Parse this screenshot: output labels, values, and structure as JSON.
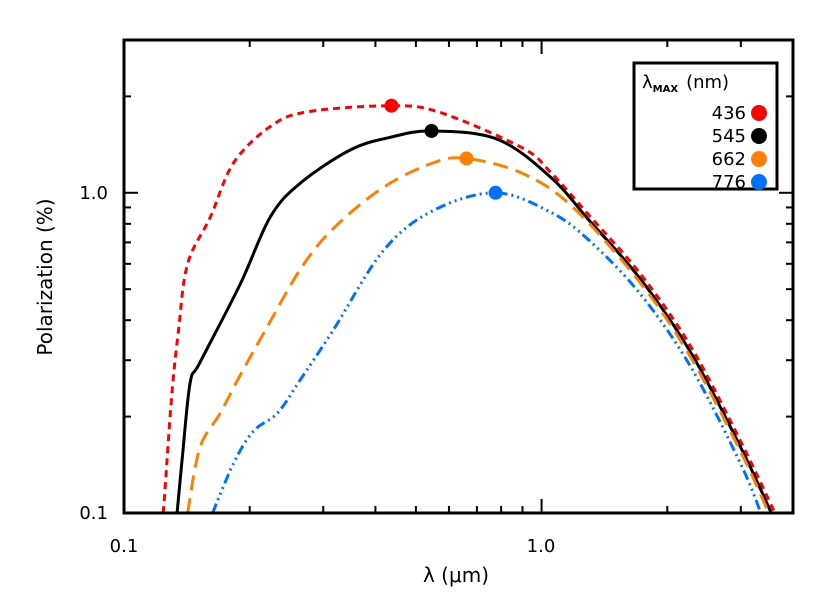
{
  "chart_data": {
    "type": "line",
    "xlabel": "λ (μm)",
    "ylabel": "Polarization (%)",
    "xscale": "log",
    "yscale": "log",
    "xlim": [
      0.1,
      4.0
    ],
    "ylim": [
      0.1,
      3.0
    ],
    "xticks": [
      {
        "value": 0.1,
        "label": "0.1"
      },
      {
        "value": 1.0,
        "label": "1.0"
      }
    ],
    "yticks": [
      {
        "value": 0.1,
        "label": "0.1"
      },
      {
        "value": 1.0,
        "label": "1.0"
      }
    ],
    "grid": false,
    "legend": {
      "placement": "top-right",
      "title_main": "λ",
      "title_sub": "MAX",
      "title_unit": "(nm)"
    },
    "series": [
      {
        "name": "436",
        "color": "#ff0000",
        "style": "short-dash",
        "peak": [
          0.437,
          1.87
        ],
        "points": [
          [
            0.124,
            0.1
          ],
          [
            0.125,
            0.112
          ],
          [
            0.13,
            0.23
          ],
          [
            0.135,
            0.37
          ],
          [
            0.142,
            0.6
          ],
          [
            0.161,
            0.84
          ],
          [
            0.183,
            1.24
          ],
          [
            0.224,
            1.61
          ],
          [
            0.275,
            1.79
          ],
          [
            0.437,
            1.87
          ],
          [
            0.573,
            1.78
          ],
          [
            0.9,
            1.38
          ],
          [
            1.05,
            1.16
          ],
          [
            1.3,
            0.85
          ],
          [
            1.73,
            0.555
          ],
          [
            2.28,
            0.33
          ],
          [
            3.0,
            0.167
          ],
          [
            3.62,
            0.1
          ]
        ]
      },
      {
        "name": "545",
        "color": "#000000",
        "style": "solid",
        "peak": [
          0.545,
          1.56
        ],
        "points": [
          [
            0.134,
            0.1
          ],
          [
            0.138,
            0.15
          ],
          [
            0.144,
            0.255
          ],
          [
            0.152,
            0.295
          ],
          [
            0.19,
            0.52
          ],
          [
            0.224,
            0.84
          ],
          [
            0.264,
            1.07
          ],
          [
            0.348,
            1.36
          ],
          [
            0.434,
            1.49
          ],
          [
            0.545,
            1.56
          ],
          [
            0.783,
            1.47
          ],
          [
            1.05,
            1.12
          ],
          [
            1.3,
            0.82
          ],
          [
            1.73,
            0.535
          ],
          [
            2.28,
            0.316
          ],
          [
            3.0,
            0.16
          ],
          [
            3.55,
            0.1
          ]
        ]
      },
      {
        "name": "662",
        "color": "#ff8000",
        "style": "long-dash",
        "peak": [
          0.661,
          1.28
        ],
        "points": [
          [
            0.142,
            0.1
          ],
          [
            0.152,
            0.16
          ],
          [
            0.17,
            0.205
          ],
          [
            0.19,
            0.27
          ],
          [
            0.22,
            0.38
          ],
          [
            0.264,
            0.575
          ],
          [
            0.316,
            0.77
          ],
          [
            0.418,
            1.04
          ],
          [
            0.55,
            1.24
          ],
          [
            0.661,
            1.28
          ],
          [
            0.9,
            1.15
          ],
          [
            1.19,
            0.9
          ],
          [
            1.73,
            0.52
          ],
          [
            2.28,
            0.305
          ],
          [
            3.0,
            0.155
          ],
          [
            3.5,
            0.1
          ]
        ]
      },
      {
        "name": "776",
        "color": "#0070ff",
        "style": "dash-dot-dot-dot",
        "peak": [
          0.776,
          1.0
        ],
        "points": [
          [
            0.163,
            0.1
          ],
          [
            0.183,
            0.143
          ],
          [
            0.204,
            0.18
          ],
          [
            0.233,
            0.205
          ],
          [
            0.264,
            0.26
          ],
          [
            0.316,
            0.37
          ],
          [
            0.418,
            0.66
          ],
          [
            0.55,
            0.88
          ],
          [
            0.776,
            1.0
          ],
          [
            1.05,
            0.87
          ],
          [
            1.3,
            0.71
          ],
          [
            1.73,
            0.48
          ],
          [
            2.28,
            0.285
          ],
          [
            3.0,
            0.142
          ],
          [
            3.35,
            0.1
          ]
        ]
      }
    ]
  }
}
